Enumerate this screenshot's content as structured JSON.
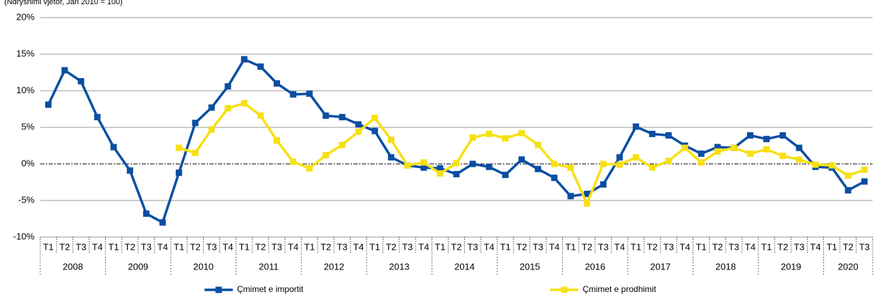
{
  "chart_data": {
    "type": "line",
    "subtitle": "(Ndryshimi vjetor, Jan 2010 = 100)",
    "categories": [
      "T1",
      "T2",
      "T3",
      "T4",
      "T1",
      "T2",
      "T3",
      "T4",
      "T1",
      "T2",
      "T3",
      "T4",
      "T1",
      "T2",
      "T3",
      "T4",
      "T1",
      "T2",
      "T3",
      "T4",
      "T1",
      "T2",
      "T3",
      "T4",
      "T1",
      "T2",
      "T3",
      "T4",
      "T1",
      "T2",
      "T3",
      "T4",
      "T1",
      "T2",
      "T3",
      "T4",
      "T1",
      "T2",
      "T3",
      "T4",
      "T1",
      "T2",
      "T3",
      "T4",
      "T1",
      "T2",
      "T3",
      "T4",
      "T1",
      "T2",
      "T3"
    ],
    "years": [
      "2008",
      "2009",
      "2010",
      "2011",
      "2012",
      "2013",
      "2014",
      "2015",
      "2016",
      "2017",
      "2018",
      "2019",
      "2020"
    ],
    "series": [
      {
        "name": "Çmimet e importit",
        "color": "#0b4ea2",
        "values": [
          8.1,
          12.8,
          11.3,
          6.4,
          2.3,
          -0.9,
          -6.8,
          -8.0,
          -1.2,
          5.6,
          7.7,
          10.6,
          14.3,
          13.3,
          11.0,
          9.5,
          9.6,
          6.6,
          6.4,
          5.4,
          4.5,
          0.9,
          -0.2,
          -0.5,
          -0.6,
          -1.4,
          0.0,
          -0.4,
          -1.5,
          0.6,
          -0.7,
          -1.9,
          -4.4,
          -4.1,
          -2.8,
          0.9,
          5.1,
          4.1,
          3.9,
          2.5,
          1.4,
          2.3,
          2.2,
          3.9,
          3.4,
          3.9,
          2.2,
          -0.4,
          -0.5,
          -3.6,
          -2.4
        ]
      },
      {
        "name": "Çmimet e prodhimit",
        "color": "#f7e012",
        "values": [
          null,
          null,
          null,
          null,
          null,
          null,
          null,
          null,
          2.2,
          1.5,
          4.7,
          7.6,
          8.3,
          6.6,
          3.2,
          0.3,
          -0.6,
          1.2,
          2.6,
          4.4,
          6.3,
          3.3,
          -0.2,
          0.2,
          -1.3,
          0.1,
          3.6,
          4.1,
          3.5,
          4.2,
          2.6,
          0.0,
          -0.5,
          -5.4,
          0.0,
          -0.1,
          0.9,
          -0.5,
          0.4,
          2.2,
          0.2,
          1.7,
          2.2,
          1.4,
          2.0,
          1.1,
          0.6,
          -0.1,
          -0.2,
          -1.6,
          -0.8
        ]
      }
    ],
    "ylim": [
      -10,
      20
    ],
    "yticks": [
      {
        "value": -10,
        "label": "-10%"
      },
      {
        "value": -5,
        "label": "-5%"
      },
      {
        "value": 0,
        "label": "0%"
      },
      {
        "value": 5,
        "label": "5%"
      },
      {
        "value": 10,
        "label": "10%"
      },
      {
        "value": 15,
        "label": "15%"
      },
      {
        "value": 20,
        "label": "20%"
      }
    ],
    "grid": true,
    "legend": "bottom"
  }
}
